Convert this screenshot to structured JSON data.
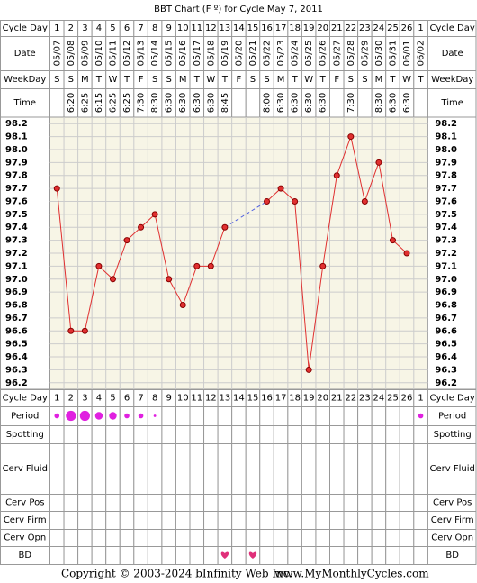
{
  "chart_data": {
    "type": "line",
    "title": "BBT Chart (F º) for Cycle May 7, 2011",
    "row_labels": [
      "Cycle Day",
      "Date",
      "WeekDay",
      "Time",
      "Period",
      "Spotting",
      "Cerv Fluid",
      "Cerv Pos",
      "Cerv Firm",
      "Cerv Opn",
      "BD"
    ],
    "categories": [
      1,
      2,
      3,
      4,
      5,
      6,
      7,
      8,
      9,
      10,
      11,
      12,
      13,
      14,
      15,
      16,
      17,
      18,
      19,
      20,
      21,
      22,
      23,
      24,
      25,
      26,
      1
    ],
    "dates": [
      "05/07",
      "05/08",
      "05/09",
      "05/10",
      "05/11",
      "05/12",
      "05/13",
      "05/14",
      "05/15",
      "05/16",
      "05/17",
      "05/18",
      "05/19",
      "05/20",
      "05/21",
      "05/22",
      "05/23",
      "05/24",
      "05/25",
      "05/26",
      "05/27",
      "05/28",
      "05/29",
      "05/30",
      "05/31",
      "06/01",
      "06/02"
    ],
    "weekdays": [
      "S",
      "S",
      "M",
      "T",
      "W",
      "T",
      "F",
      "S",
      "S",
      "M",
      "T",
      "W",
      "T",
      "F",
      "S",
      "S",
      "M",
      "T",
      "W",
      "T",
      "F",
      "S",
      "S",
      "M",
      "T",
      "W",
      "T"
    ],
    "times": [
      null,
      "6:20",
      "6:25",
      "6:15",
      "6:25",
      "6:25",
      "7:30",
      "8:30",
      "6:30",
      "6:30",
      "6:30",
      "6:30",
      "8:45",
      null,
      null,
      "8:00",
      "6:30",
      "6:30",
      "6:30",
      "6:30",
      null,
      "7:30",
      null,
      "8:30",
      "6:30",
      "6:30",
      null
    ],
    "values": [
      97.7,
      96.6,
      96.6,
      97.1,
      97.0,
      97.3,
      97.4,
      97.5,
      97.0,
      96.8,
      97.1,
      97.1,
      97.4,
      null,
      null,
      97.6,
      97.7,
      97.6,
      96.3,
      97.1,
      97.8,
      98.1,
      97.6,
      97.9,
      97.3,
      97.2,
      null
    ],
    "color": "#e03030",
    "ylim": [
      96.15,
      98.25
    ],
    "yticks": [
      96.2,
      96.3,
      96.4,
      96.5,
      96.6,
      96.7,
      96.8,
      96.9,
      {
        "value": 97,
        "label": "97.0"
      },
      97.1,
      97.2,
      97.3,
      97.4,
      97.5,
      97.6,
      97.7,
      97.8,
      97.9,
      {
        "value": 98,
        "label": "98.0"
      },
      98.1,
      98.2
    ],
    "grid": true,
    "period": [
      2,
      4,
      4,
      3,
      3,
      2,
      2,
      1,
      null,
      null,
      null,
      null,
      null,
      null,
      null,
      null,
      null,
      null,
      null,
      null,
      null,
      null,
      null,
      null,
      null,
      null,
      2
    ],
    "period_color": "#e020e0",
    "bd": [
      13,
      15
    ],
    "bd_color": "#e0307a"
  },
  "footer": {
    "copyright": "Copyright © 2003-2024 bInfinity Web Inc.",
    "website": "www.MyMonthlyCycles.com"
  }
}
